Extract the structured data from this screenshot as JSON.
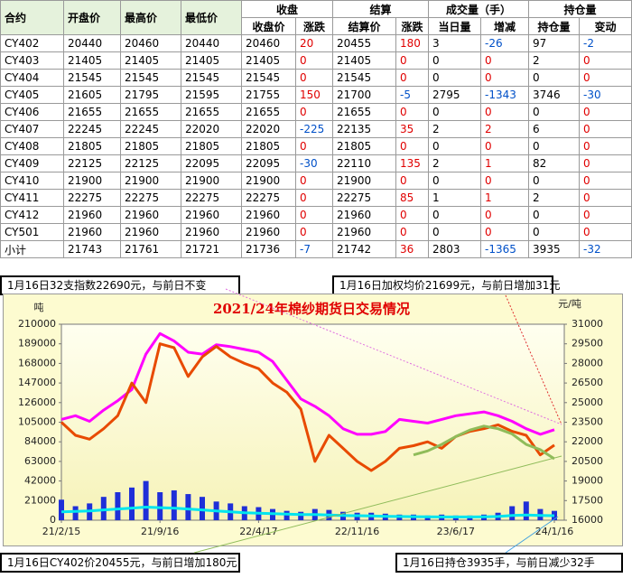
{
  "table": {
    "header": {
      "top": [
        "合约",
        "开盘价",
        "最高价",
        "最低价",
        "收盘",
        "结算",
        "成交量（手）",
        "持仓量"
      ],
      "sub": [
        "收盘价",
        "涨跌",
        "结算价",
        "涨跌",
        "当日量",
        "增减",
        "持仓量",
        "变动"
      ]
    },
    "rows": [
      [
        "CY402",
        20440,
        20460,
        20440,
        20460,
        20,
        20455,
        180,
        3,
        -26,
        97,
        -2
      ],
      [
        "CY403",
        21405,
        21405,
        21405,
        21405,
        0,
        21405,
        0,
        0,
        0,
        2,
        0
      ],
      [
        "CY404",
        21545,
        21545,
        21545,
        21545,
        0,
        21545,
        0,
        0,
        0,
        0,
        0
      ],
      [
        "CY405",
        21605,
        21795,
        21595,
        21755,
        150,
        21700,
        -5,
        2795,
        -1343,
        3746,
        -30
      ],
      [
        "CY406",
        21655,
        21655,
        21655,
        21655,
        0,
        21655,
        0,
        0,
        0,
        0,
        0
      ],
      [
        "CY407",
        22245,
        22245,
        22020,
        22020,
        -225,
        22135,
        35,
        2,
        2,
        6,
        0
      ],
      [
        "CY408",
        21805,
        21805,
        21805,
        21805,
        0,
        21805,
        0,
        0,
        0,
        0,
        0
      ],
      [
        "CY409",
        22125,
        22125,
        22095,
        22095,
        -30,
        22110,
        135,
        2,
        1,
        82,
        0
      ],
      [
        "CY410",
        21900,
        21900,
        21900,
        21900,
        0,
        21900,
        0,
        0,
        0,
        0,
        0
      ],
      [
        "CY411",
        22275,
        22275,
        22275,
        22275,
        0,
        22275,
        85,
        1,
        1,
        2,
        0
      ],
      [
        "CY412",
        21960,
        21960,
        21960,
        21960,
        0,
        21960,
        0,
        0,
        0,
        0,
        0
      ],
      [
        "CY501",
        21960,
        21960,
        21960,
        21960,
        0,
        21960,
        0,
        0,
        0,
        0,
        0
      ],
      [
        "小计",
        21743,
        21761,
        21721,
        21736,
        -7,
        21742,
        36,
        2803,
        -1365,
        3935,
        -32
      ]
    ]
  },
  "annotations": [
    "1月16日32支指数22690元，与前日不变",
    "1月16日加权均价21699元，与前日增加31元",
    "1月16日CY402价20455元，与前日增加180元",
    "1月16日持仓3935手，与前日减少32手"
  ],
  "chart_data": {
    "type": "combo",
    "title": "2021/24年棉纱期货日交易情况",
    "y_label": "吨",
    "y2_label": "元/吨",
    "categories": [
      "21/2/15",
      null,
      null,
      null,
      null,
      null,
      null,
      "21/9/16",
      null,
      null,
      null,
      null,
      null,
      null,
      "22/4/17",
      null,
      null,
      null,
      null,
      null,
      null,
      "22/11/16",
      null,
      null,
      null,
      null,
      null,
      null,
      "23/6/17",
      null,
      null,
      null,
      null,
      null,
      null,
      "24/1/16"
    ],
    "ylim": [
      0,
      210000
    ],
    "yticks": [
      0,
      21000,
      42000,
      63000,
      84000,
      105000,
      126000,
      147000,
      168000,
      189000,
      210000
    ],
    "y2lim": [
      16000,
      31000
    ],
    "y2ticks": [
      16000,
      17500,
      19000,
      20500,
      22000,
      23500,
      25000,
      26500,
      28000,
      29500,
      31000
    ],
    "grid": false,
    "series": [
      {
        "type": "bar",
        "color": "#1f2fd8",
        "values": [
          22000,
          15000,
          18000,
          25000,
          30000,
          35000,
          42000,
          30000,
          32000,
          28000,
          25000,
          20000,
          18000,
          15000,
          14000,
          12000,
          10000,
          9000,
          12000,
          11000,
          9000,
          8000,
          8000,
          7000,
          6000,
          6000,
          5000,
          6000,
          5000,
          5000,
          6000,
          8000,
          15000,
          20000,
          12000,
          10000
        ]
      },
      {
        "type": "line",
        "color": "#00e5ee",
        "values": [
          9000,
          9500,
          10000,
          11000,
          12000,
          13000,
          14000,
          13500,
          13000,
          12000,
          11000,
          10000,
          9000,
          8000,
          7500,
          7000,
          6500,
          6000,
          6000,
          5500,
          5000,
          4800,
          4500,
          4200,
          4000,
          3800,
          3600,
          3500,
          3500,
          3500,
          3600,
          4000,
          5000,
          5500,
          5000,
          4800
        ]
      },
      {
        "type": "line",
        "color": "#ff00ff",
        "values": [
          108000,
          112000,
          106000,
          118000,
          128000,
          140000,
          178000,
          200000,
          192000,
          180000,
          178000,
          188000,
          186000,
          183000,
          180000,
          170000,
          150000,
          130000,
          122000,
          112000,
          98000,
          92000,
          92000,
          95000,
          108000,
          106000,
          104000,
          108000,
          112000,
          114000,
          116000,
          112000,
          106000,
          98000,
          92000,
          97000
        ]
      },
      {
        "type": "line",
        "axis": "y2",
        "color": "#e84a00",
        "values": [
          23500,
          22500,
          22200,
          23000,
          24000,
          26500,
          25000,
          29500,
          29200,
          27000,
          28500,
          29300,
          28500,
          28000,
          27600,
          26500,
          25800,
          24500,
          20500,
          22500,
          21500,
          20500,
          19800,
          20500,
          21500,
          21700,
          22000,
          21500,
          22400,
          22800,
          23000,
          23300,
          22800,
          22500,
          21000,
          21742
        ]
      },
      {
        "type": "line",
        "axis": "y2",
        "color": "#8fbc5a",
        "values": [
          null,
          null,
          null,
          null,
          null,
          null,
          null,
          null,
          null,
          null,
          null,
          null,
          null,
          null,
          null,
          null,
          null,
          null,
          null,
          null,
          null,
          null,
          null,
          null,
          null,
          21000,
          21300,
          21800,
          22400,
          22900,
          23200,
          23000,
          22600,
          21800,
          21400,
          20700
        ]
      }
    ]
  }
}
